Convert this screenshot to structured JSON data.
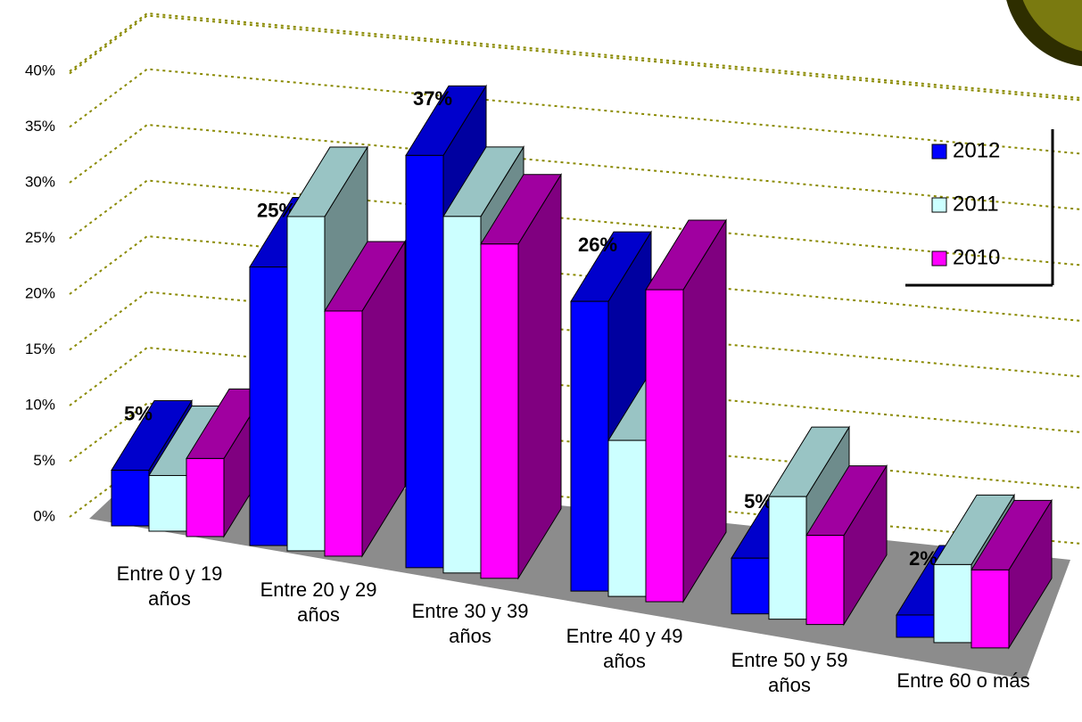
{
  "chart_data": {
    "type": "bar3d",
    "categories": [
      "Entre 0 y 19 años",
      "Entre 20 y 29 años",
      "Entre 30 y 39 años",
      "Entre 40 y 49 años",
      "Entre 50 y 59 años",
      "Entre 60 o más"
    ],
    "series": [
      {
        "name": "2012",
        "color": "#0000ff",
        "values": [
          5,
          25,
          37,
          26,
          5,
          2
        ],
        "value_labels": [
          "5%",
          "25%",
          "37%",
          "26%",
          "5%",
          "2%"
        ]
      },
      {
        "name": "2011",
        "color": "#ccffff",
        "values": [
          5,
          30,
          32,
          14,
          11,
          7
        ]
      },
      {
        "name": "2010",
        "color": "#ff00ff",
        "values": [
          7,
          22,
          30,
          28,
          8,
          7
        ]
      }
    ],
    "ylim": [
      0,
      45
    ],
    "yticks": [
      {
        "value": 0,
        "label": "0%"
      },
      {
        "value": 5,
        "label": "5%"
      },
      {
        "value": 10,
        "label": "10%"
      },
      {
        "value": 15,
        "label": "15%"
      },
      {
        "value": 20,
        "label": "20%"
      },
      {
        "value": 25,
        "label": "25%"
      },
      {
        "value": 30,
        "label": "30%"
      },
      {
        "value": 35,
        "label": "35%"
      },
      {
        "value": 40,
        "label": "40%"
      }
    ],
    "grid": true,
    "legend": "right"
  }
}
